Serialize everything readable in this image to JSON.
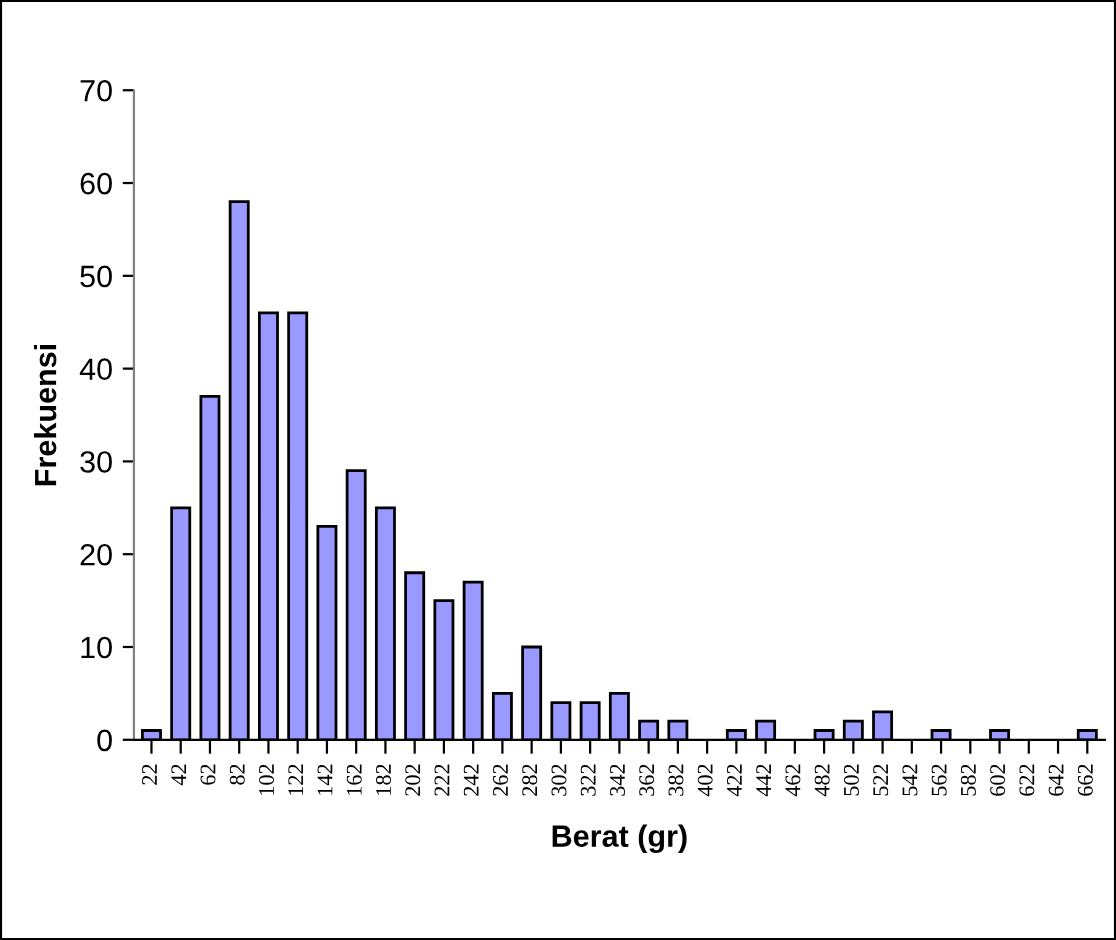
{
  "chart_data": {
    "type": "bar",
    "xlabel": "Berat (gr)",
    "ylabel": "Frekuensi",
    "categories": [
      "22",
      "42",
      "62",
      "82",
      "102",
      "122",
      "142",
      "162",
      "182",
      "202",
      "222",
      "242",
      "262",
      "282",
      "302",
      "322",
      "342",
      "362",
      "382",
      "402",
      "422",
      "442",
      "462",
      "482",
      "502",
      "522",
      "542",
      "562",
      "582",
      "602",
      "622",
      "642",
      "662"
    ],
    "values": [
      1,
      25,
      37,
      58,
      46,
      46,
      23,
      29,
      25,
      18,
      15,
      17,
      5,
      10,
      4,
      4,
      5,
      2,
      2,
      0,
      1,
      2,
      0,
      1,
      2,
      3,
      0,
      1,
      0,
      1,
      0,
      0,
      1
    ],
    "color": "#9999ff",
    "ylim": [
      0,
      70
    ],
    "yticks": [
      0,
      10,
      20,
      30,
      40,
      50,
      60,
      70
    ],
    "grid": false,
    "legend": false
  }
}
